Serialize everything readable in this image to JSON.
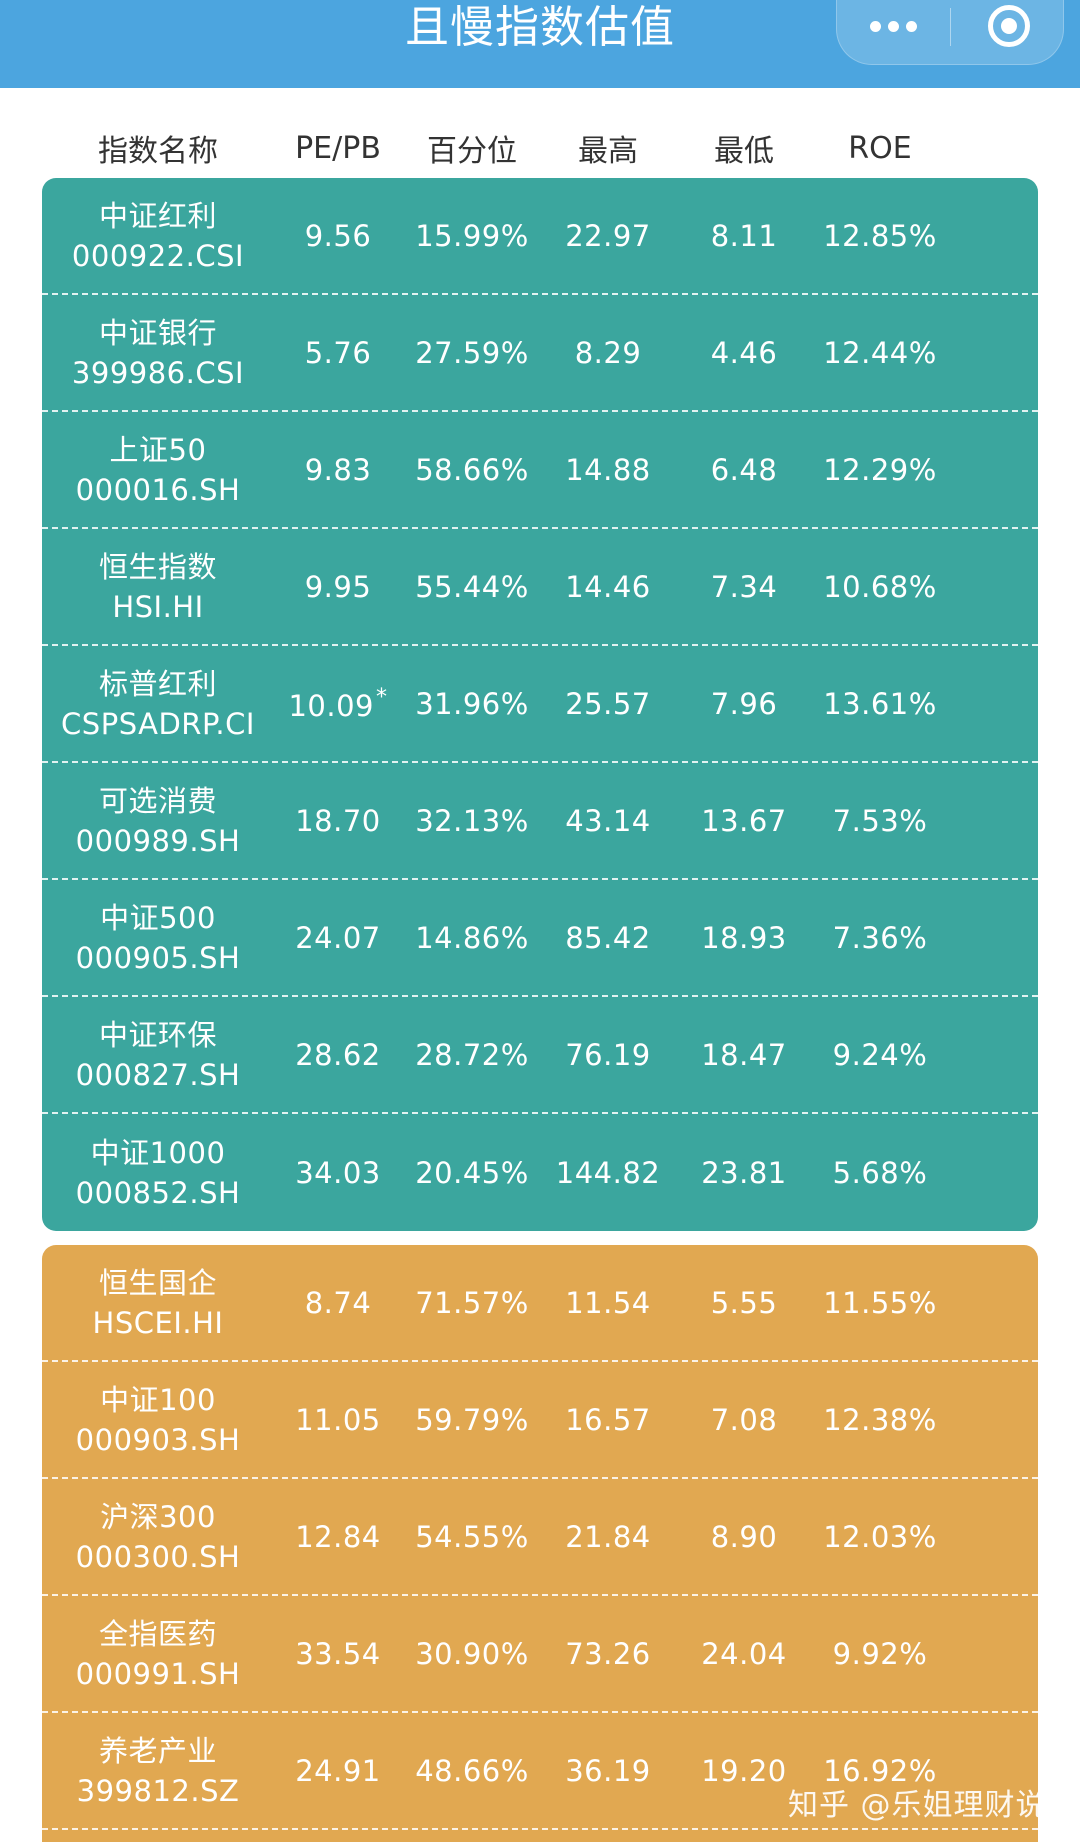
{
  "header": {
    "title": "且慢指数估值",
    "more_icon": "more-dots-icon",
    "close_icon": "target-close-icon"
  },
  "columns": [
    "指数名称",
    "PE/PB",
    "百分位",
    "最高",
    "最低",
    "ROE"
  ],
  "colors": {
    "header_bg": "#4ca5df",
    "green_group": "#3ba69e",
    "orange_group": "#e1a851"
  },
  "green_rows": [
    {
      "name": "中证红利",
      "code": "000922.CSI",
      "pe": "9.56",
      "pct": "15.99%",
      "high": "22.97",
      "low": "8.11",
      "roe": "12.85%"
    },
    {
      "name": "中证银行",
      "code": "399986.CSI",
      "pe": "5.76",
      "pct": "27.59%",
      "high": "8.29",
      "low": "4.46",
      "roe": "12.44%"
    },
    {
      "name": "上证50",
      "code": "000016.SH",
      "pe": "9.83",
      "pct": "58.66%",
      "high": "14.88",
      "low": "6.48",
      "roe": "12.29%"
    },
    {
      "name": "恒生指数",
      "code": "HSI.HI",
      "pe": "9.95",
      "pct": "55.44%",
      "high": "14.46",
      "low": "7.34",
      "roe": "10.68%"
    },
    {
      "name": "标普红利",
      "code": "CSPSADRP.CI",
      "pe": "10.09",
      "pe_mark": "*",
      "pct": "31.96%",
      "high": "25.57",
      "low": "7.96",
      "roe": "13.61%"
    },
    {
      "name": "可选消费",
      "code": "000989.SH",
      "pe": "18.70",
      "pct": "32.13%",
      "high": "43.14",
      "low": "13.67",
      "roe": "7.53%"
    },
    {
      "name": "中证500",
      "code": "000905.SH",
      "pe": "24.07",
      "pct": "14.86%",
      "high": "85.42",
      "low": "18.93",
      "roe": "7.36%"
    },
    {
      "name": "中证环保",
      "code": "000827.SH",
      "pe": "28.62",
      "pct": "28.72%",
      "high": "76.19",
      "low": "18.47",
      "roe": "9.24%"
    },
    {
      "name": "中证1000",
      "code": "000852.SH",
      "pe": "34.03",
      "pct": "20.45%",
      "high": "144.82",
      "low": "23.81",
      "roe": "5.68%"
    }
  ],
  "orange_rows": [
    {
      "name": "恒生国企",
      "code": "HSCEI.HI",
      "pe": "8.74",
      "pct": "71.57%",
      "high": "11.54",
      "low": "5.55",
      "roe": "11.55%"
    },
    {
      "name": "中证100",
      "code": "000903.SH",
      "pe": "11.05",
      "pct": "59.79%",
      "high": "16.57",
      "low": "7.08",
      "roe": "12.38%"
    },
    {
      "name": "沪深300",
      "code": "000300.SH",
      "pe": "12.84",
      "pct": "54.55%",
      "high": "21.84",
      "low": "8.90",
      "roe": "12.03%"
    },
    {
      "name": "全指医药",
      "code": "000991.SH",
      "pe": "33.54",
      "pct": "30.90%",
      "high": "73.26",
      "low": "24.04",
      "roe": "9.92%"
    },
    {
      "name": "养老产业",
      "code": "399812.SZ",
      "pe": "24.91",
      "pct": "48.66%",
      "high": "36.19",
      "low": "19.20",
      "roe": "16.92%"
    }
  ],
  "watermark": "知乎 @乐姐理财说"
}
